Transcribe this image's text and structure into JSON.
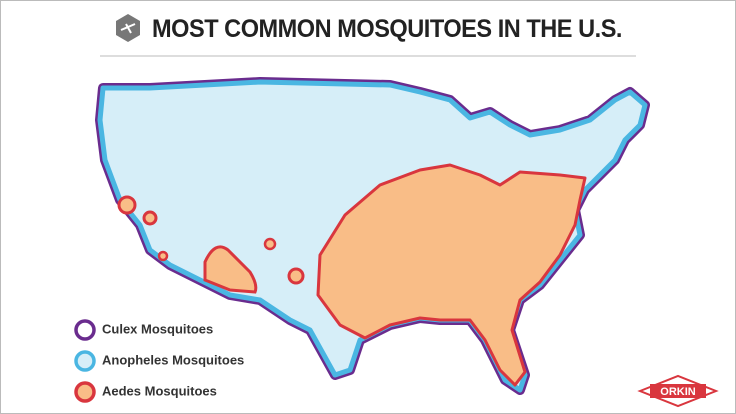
{
  "header": {
    "title": "MOST COMMON MOSQUITOES IN THE U.S."
  },
  "legend": {
    "items": [
      {
        "label": "Culex Mosquitoes",
        "color": "#6a2c8e"
      },
      {
        "label": "Anopheles Mosquitoes",
        "color": "#4ab6e2"
      },
      {
        "label": "Aedes Mosquitoes",
        "color": "#d9363e"
      }
    ]
  },
  "logo": {
    "text": "ORKIN"
  }
}
